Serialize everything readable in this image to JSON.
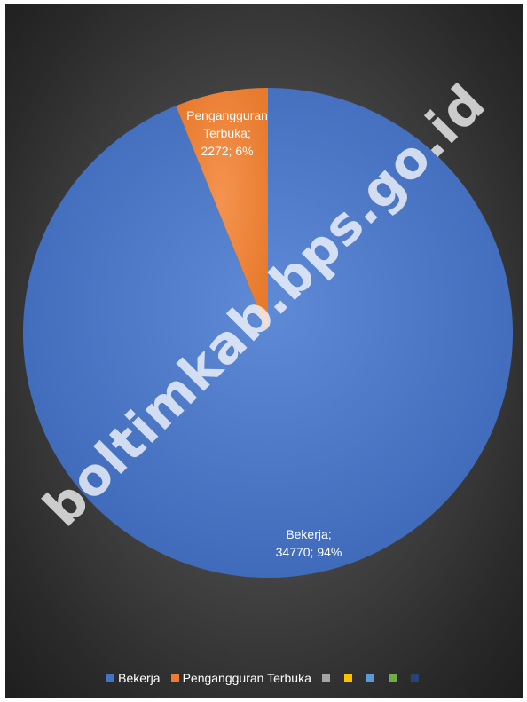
{
  "chart_data": {
    "type": "pie",
    "slices": [
      {
        "label": "Bekerja",
        "value": 34770,
        "percent": "94%",
        "color": "#4472C4"
      },
      {
        "label": "Pengangguran Terbuka",
        "value": 2272,
        "percent": "6%",
        "color": "#ED7D31"
      }
    ],
    "data_labels": {
      "bekerja": [
        "Bekerja;",
        "34770; 94%"
      ],
      "pengangguran": [
        "Pengangguran",
        "Terbuka;",
        "2272; 6%"
      ]
    },
    "legend": {
      "placement": "bottom",
      "entries": [
        {
          "label": "Bekerja",
          "color": "#4472C4"
        },
        {
          "label": "Pengangguran Terbuka",
          "color": "#ED7D31"
        },
        {
          "label": "",
          "color": "#A5A5A5"
        },
        {
          "label": "",
          "color": "#FFC000"
        },
        {
          "label": "",
          "color": "#5B9BD5"
        },
        {
          "label": "",
          "color": "#70AD47"
        },
        {
          "label": "",
          "color": "#264478"
        }
      ]
    },
    "background_color": "#404040"
  },
  "watermark": "boltimkab.bps.go.id"
}
